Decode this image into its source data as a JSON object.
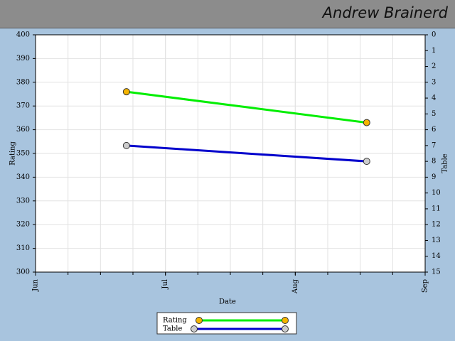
{
  "header": {
    "title": "Andrew Brainerd"
  },
  "chart_data": {
    "type": "line",
    "xlabel": "Date",
    "ylabel": "Rating",
    "y2label": "Table",
    "x": [
      0.7,
      2.55
    ],
    "xlim": [
      0,
      3
    ],
    "xticks": [
      {
        "value": 0,
        "label": "Jun"
      },
      {
        "value": 1,
        "label": "Jul"
      },
      {
        "value": 2,
        "label": "Aug"
      },
      {
        "value": 3,
        "label": "Sep"
      }
    ],
    "ylim": [
      300,
      400
    ],
    "yticks": [
      300,
      310,
      320,
      330,
      340,
      350,
      360,
      370,
      380,
      390,
      400
    ],
    "y2lim": [
      15,
      0
    ],
    "y2ticks": [
      0,
      1,
      2,
      3,
      4,
      5,
      6,
      7,
      8,
      9,
      10,
      11,
      12,
      13,
      14,
      15
    ],
    "grid": true,
    "legend": "bottom",
    "series": [
      {
        "name": "Rating",
        "color": "#00ee00",
        "marker_color": "#f5b400",
        "values": [
          376,
          363
        ]
      },
      {
        "name": "Table",
        "color": "#0000cc",
        "marker_color": "#cccccc",
        "axis": "y2",
        "values": [
          7,
          8
        ]
      }
    ]
  }
}
